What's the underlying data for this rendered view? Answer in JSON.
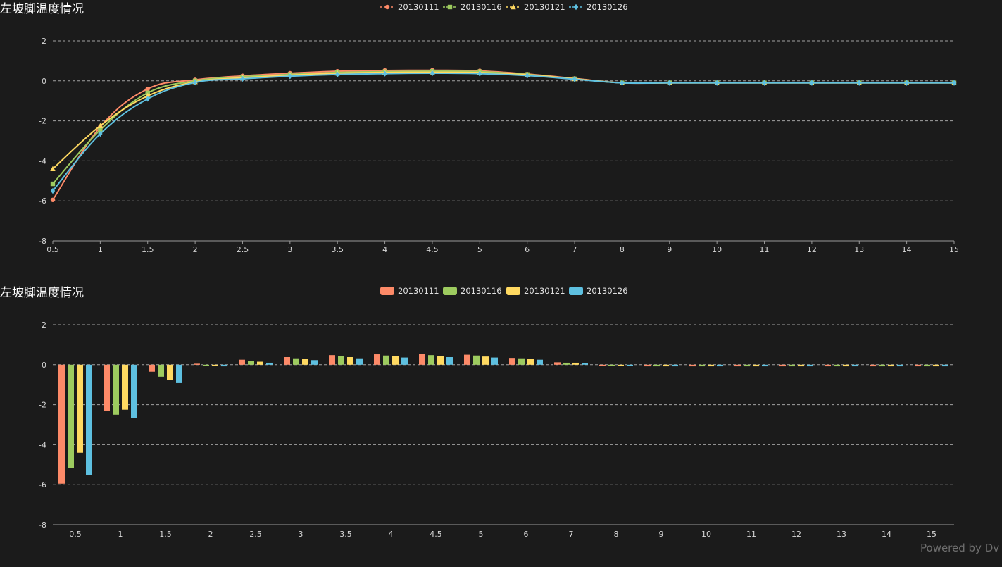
{
  "watermark": "Powered by Dv",
  "colors": {
    "20130111": "#fd8a68",
    "20130116": "#9dcb5f",
    "20130121": "#ffd961",
    "20130126": "#5ec0e0"
  },
  "chart_data": [
    {
      "type": "line",
      "title": "左坡脚温度情况",
      "x_type": "value",
      "x": [
        0.5,
        1,
        1.5,
        2,
        2.5,
        3,
        3.5,
        4,
        4.5,
        5,
        6,
        7,
        8,
        9,
        10,
        11,
        12,
        13,
        14,
        15
      ],
      "x_ticks": [
        "0.5",
        "1",
        "1.5",
        "2",
        "2.5",
        "3",
        "3.5",
        "4",
        "4.5",
        "5",
        "6",
        "7",
        "8",
        "9",
        "10",
        "11",
        "12",
        "13",
        "14",
        "15"
      ],
      "y_ticks": [
        "2",
        "0",
        "-2",
        "-4",
        "-6",
        "-8"
      ],
      "ylim": [
        -8,
        2
      ],
      "grid": true,
      "legend_position": "top-center",
      "series": [
        {
          "name": "20130111",
          "marker": "circle",
          "values": [
            -5.95,
            -2.3,
            -0.4,
            0.05,
            0.25,
            0.38,
            0.48,
            0.52,
            0.53,
            0.5,
            0.34,
            0.12,
            -0.1,
            -0.1,
            -0.1,
            -0.1,
            -0.1,
            -0.1,
            -0.1,
            -0.1
          ]
        },
        {
          "name": "20130116",
          "marker": "square",
          "values": [
            -5.15,
            -2.45,
            -0.6,
            0.0,
            0.2,
            0.32,
            0.42,
            0.46,
            0.48,
            0.46,
            0.32,
            0.1,
            -0.1,
            -0.1,
            -0.1,
            -0.1,
            -0.1,
            -0.1,
            -0.1,
            -0.1
          ]
        },
        {
          "name": "20130121",
          "marker": "triangle",
          "values": [
            -4.4,
            -2.25,
            -0.75,
            -0.05,
            0.15,
            0.28,
            0.38,
            0.42,
            0.43,
            0.41,
            0.3,
            0.1,
            -0.1,
            -0.1,
            -0.1,
            -0.1,
            -0.1,
            -0.1,
            -0.1,
            -0.1
          ]
        },
        {
          "name": "20130126",
          "marker": "diamond",
          "values": [
            -5.5,
            -2.65,
            -0.9,
            -0.08,
            0.1,
            0.23,
            0.32,
            0.36,
            0.38,
            0.36,
            0.26,
            0.08,
            -0.1,
            -0.1,
            -0.1,
            -0.1,
            -0.1,
            -0.1,
            -0.1,
            -0.1
          ]
        }
      ]
    },
    {
      "type": "bar",
      "title": "左坡脚温度情况",
      "categories": [
        "0.5",
        "1",
        "1.5",
        "2",
        "2.5",
        "3",
        "3.5",
        "4",
        "4.5",
        "5",
        "6",
        "7",
        "8",
        "9",
        "10",
        "11",
        "12",
        "13",
        "14",
        "15"
      ],
      "y_ticks": [
        "2",
        "0",
        "-2",
        "-4",
        "-6",
        "-8"
      ],
      "ylim": [
        -8,
        2
      ],
      "grid": true,
      "legend_position": "top-center",
      "series": [
        {
          "name": "20130111",
          "values": [
            -5.95,
            -2.3,
            -0.35,
            0.05,
            0.25,
            0.38,
            0.48,
            0.52,
            0.53,
            0.5,
            0.34,
            0.12,
            -0.06,
            -0.08,
            -0.08,
            -0.08,
            -0.08,
            -0.08,
            -0.08,
            -0.08
          ]
        },
        {
          "name": "20130116",
          "values": [
            -5.15,
            -2.5,
            -0.6,
            -0.02,
            0.2,
            0.32,
            0.42,
            0.46,
            0.48,
            0.46,
            0.32,
            0.1,
            -0.06,
            -0.08,
            -0.08,
            -0.08,
            -0.08,
            -0.08,
            -0.08,
            -0.08
          ]
        },
        {
          "name": "20130121",
          "values": [
            -4.4,
            -2.25,
            -0.75,
            -0.04,
            0.15,
            0.28,
            0.38,
            0.42,
            0.43,
            0.41,
            0.28,
            0.1,
            -0.06,
            -0.08,
            -0.08,
            -0.08,
            -0.08,
            -0.08,
            -0.08,
            -0.08
          ]
        },
        {
          "name": "20130126",
          "values": [
            -5.5,
            -2.65,
            -0.92,
            -0.08,
            0.1,
            0.23,
            0.32,
            0.36,
            0.38,
            0.36,
            0.25,
            0.08,
            -0.06,
            -0.08,
            -0.08,
            -0.08,
            -0.08,
            -0.08,
            -0.08,
            -0.08
          ]
        }
      ]
    }
  ]
}
